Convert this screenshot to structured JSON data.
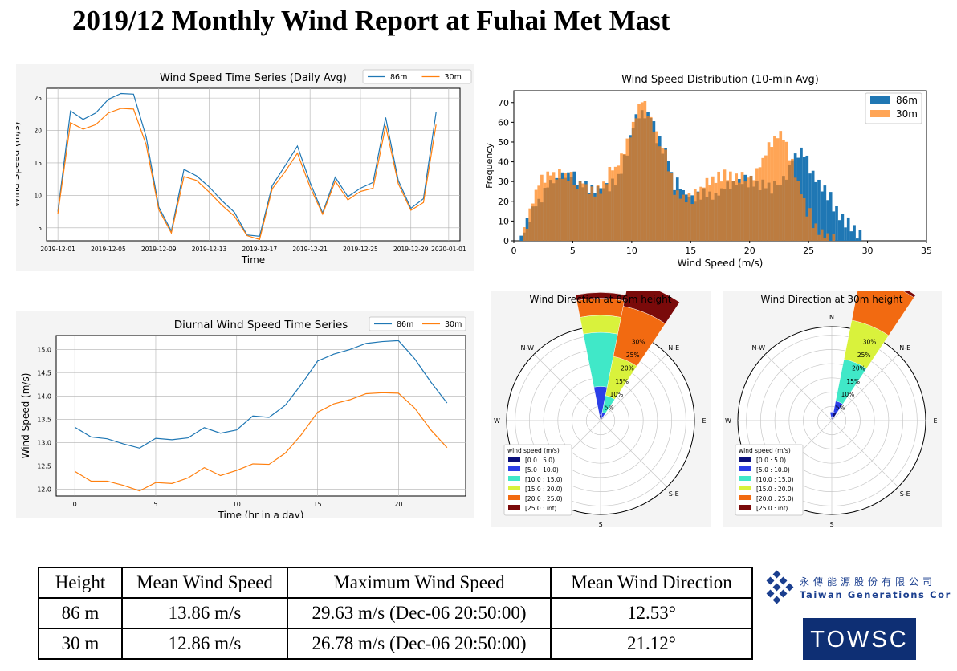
{
  "title": "2019/12 Monthly Wind Report at Fuhai Met Mast",
  "colors": {
    "s86": "#1f77b4",
    "s30": "#ff7f0e",
    "bins": [
      "#0a0f7a",
      "#2b3fe8",
      "#40e8c8",
      "#d9f23c",
      "#f26a11",
      "#7a0a0a"
    ]
  },
  "chart_data": [
    {
      "type": "line",
      "title": "Wind Speed Time Series (Daily Avg)",
      "xlabel": "Time",
      "ylabel": "Wind Speed (m/s)",
      "xticks": [
        "2019-12-01",
        "2019-12-05",
        "2019-12-09",
        "2019-12-13",
        "2019-12-17",
        "2019-12-21",
        "2019-12-25",
        "2019-12-29",
        "2020-01-01"
      ],
      "yticks": [
        "5",
        "10",
        "15",
        "20",
        "25"
      ],
      "ylim": [
        3,
        26.5
      ],
      "xlim": [
        -0.9,
        31.9
      ],
      "x": [
        0,
        1,
        2,
        3,
        4,
        5,
        6,
        7,
        8,
        9,
        10,
        11,
        12,
        13,
        14,
        15,
        16,
        17,
        18,
        19,
        20,
        21,
        22,
        23,
        24,
        25,
        26,
        27,
        28,
        29,
        30
      ],
      "series": [
        {
          "name": "86m",
          "values": [
            7.5,
            23.0,
            21.7,
            22.7,
            24.8,
            25.7,
            25.6,
            19.0,
            8.2,
            4.5,
            14.0,
            13.0,
            11.3,
            9.2,
            7.4,
            3.9,
            3.7,
            11.5,
            14.5,
            17.6,
            12.0,
            7.3,
            12.8,
            9.8,
            11.1,
            12.0,
            22.0,
            12.3,
            8.0,
            9.5,
            22.8
          ]
        },
        {
          "name": "30m",
          "values": [
            7.2,
            21.2,
            20.2,
            20.9,
            22.7,
            23.4,
            23.3,
            17.8,
            7.8,
            4.2,
            12.9,
            12.3,
            10.5,
            8.5,
            6.8,
            3.8,
            3.2,
            11.0,
            13.6,
            16.5,
            11.3,
            7.1,
            12.2,
            9.3,
            10.6,
            11.1,
            20.7,
            11.8,
            7.7,
            8.9,
            20.9
          ]
        }
      ],
      "legend": "top-right"
    },
    {
      "type": "bar",
      "title": "Wind Speed Distribution (10-min Avg)",
      "xlabel": "Wind Speed (m/s)",
      "ylabel": "Frequency",
      "xticks": [
        "0",
        "5",
        "10",
        "15",
        "20",
        "25",
        "30",
        "35"
      ],
      "yticks": [
        "0",
        "10",
        "20",
        "30",
        "40",
        "50",
        "60",
        "70"
      ],
      "xlim": [
        0,
        35
      ],
      "ylim": [
        0,
        76
      ],
      "bin_width": 0.25,
      "series": [
        {
          "name": "86m",
          "x": [
            0.5,
            1,
            2,
            3,
            4,
            5,
            6,
            7,
            8,
            9,
            10,
            10.5,
            11,
            11.5,
            12,
            13,
            13.5,
            14,
            15,
            16,
            17,
            18,
            19,
            20,
            21,
            22,
            23,
            23.5,
            24,
            24.5,
            25,
            26,
            27,
            28,
            29,
            30
          ],
          "values": [
            0,
            6,
            20,
            28,
            33,
            34,
            28,
            27,
            27,
            33,
            55,
            63,
            62,
            65,
            54,
            44,
            29,
            28,
            21,
            23,
            22,
            27,
            30,
            30,
            29,
            27,
            31,
            40,
            45,
            47,
            38,
            28,
            20,
            11,
            4,
            0
          ]
        },
        {
          "name": "30m",
          "x": [
            0.5,
            1,
            2,
            3,
            4,
            5,
            6,
            7,
            8,
            9,
            10,
            10.5,
            11,
            11.5,
            12,
            13,
            13.5,
            14,
            15,
            16,
            17,
            18,
            19,
            20,
            21,
            22,
            23,
            24,
            25,
            26,
            27,
            28
          ],
          "values": [
            0,
            6,
            28,
            34,
            33,
            31,
            29,
            23,
            34,
            39,
            56,
            68,
            72,
            62,
            55,
            41,
            28,
            24,
            21,
            27,
            32,
            34,
            31,
            32,
            39,
            52,
            52,
            31,
            14,
            4,
            1,
            0
          ]
        }
      ],
      "legend": "top-right"
    },
    {
      "type": "line",
      "title": "Diurnal Wind Speed Time Series",
      "xlabel": "Time (hr in a day)",
      "ylabel": "Wind Speed (m/s)",
      "xticks": [
        "0",
        "5",
        "10",
        "15",
        "20"
      ],
      "yticks": [
        "12.0",
        "12.5",
        "13.0",
        "13.5",
        "14.0",
        "14.5",
        "15.0"
      ],
      "xlim": [
        -1.15,
        24.15
      ],
      "ylim": [
        11.85,
        15.3
      ],
      "x": [
        0,
        1,
        2,
        3,
        4,
        5,
        6,
        7,
        8,
        9,
        10,
        11,
        12,
        13,
        14,
        15,
        16,
        17,
        18,
        19,
        20,
        21,
        22,
        23
      ],
      "series": [
        {
          "name": "86m",
          "values": [
            13.33,
            13.12,
            13.08,
            12.97,
            12.88,
            13.09,
            13.06,
            13.1,
            13.32,
            13.2,
            13.27,
            13.57,
            13.54,
            13.8,
            14.25,
            14.75,
            14.9,
            15.0,
            15.13,
            15.17,
            15.19,
            14.8,
            14.3,
            13.85
          ]
        },
        {
          "name": "30m",
          "values": [
            12.38,
            12.17,
            12.17,
            12.08,
            11.96,
            12.14,
            12.12,
            12.24,
            12.46,
            12.29,
            12.4,
            12.54,
            12.53,
            12.77,
            13.17,
            13.65,
            13.83,
            13.92,
            14.05,
            14.07,
            14.06,
            13.74,
            13.27,
            12.89
          ]
        }
      ],
      "legend": "top-right"
    },
    {
      "type": "area",
      "title": "Wind Direction at 86m height",
      "compass": [
        "N",
        "N-E",
        "E",
        "S-E",
        "S",
        "S-W",
        "W",
        "N-W"
      ],
      "rings": [
        "5%",
        "10%",
        "15%",
        "20%",
        "25%",
        "30%"
      ],
      "ring_max": 33,
      "legend_title": "wind speed (m/s)",
      "bin_labels": [
        "[0.0 : 5.0)",
        "[5.0 : 10.0)",
        "[10.0 : 15.0)",
        "[15.0 : 20.0)",
        "[20.0 : 25.0)",
        "[25.0 : inf)"
      ],
      "sectors": [
        {
          "dir": 0,
          "cumulative": [
            2,
            12,
            31,
            37,
            43,
            45
          ]
        },
        {
          "dir": 22.5,
          "cumulative": [
            1,
            3,
            9,
            23,
            41,
            50
          ]
        }
      ]
    },
    {
      "type": "area",
      "title": "Wind Direction at 30m height",
      "compass": [
        "N",
        "N-E",
        "E",
        "S-E",
        "S",
        "S-W",
        "W",
        "N-W"
      ],
      "rings": [
        "5%",
        "10%",
        "15%",
        "20%",
        "25%",
        "30%"
      ],
      "ring_max": 33,
      "legend_title": "wind speed (m/s)",
      "bin_labels": [
        "[0.0 : 5.0)",
        "[5.0 : 10.0)",
        "[10.0 : 15.0)",
        "[15.0 : 20.0)",
        "[20.0 : 25.0)",
        "[25.0 : inf)"
      ],
      "sectors": [
        {
          "dir": 0,
          "cumulative": [
            1,
            3,
            3,
            3,
            3,
            3
          ]
        },
        {
          "dir": 22.5,
          "cumulative": [
            3,
            7,
            22,
            36,
            52,
            53
          ]
        }
      ]
    }
  ],
  "table": {
    "headers": [
      "Height",
      "Mean Wind Speed",
      "Maximum Wind Speed",
      "Mean Wind Direction"
    ],
    "rows": [
      [
        "86 m",
        "13.86 m/s",
        "29.63 m/s (Dec-06 20:50:00)",
        "12.53°"
      ],
      [
        "30 m",
        "12.86 m/s",
        "26.78 m/s (Dec-06 20:50:00)",
        "21.12°"
      ]
    ]
  },
  "logos": {
    "company_cn": "永傳能源股份有限公司",
    "company_en": "Taiwan Generations Corp.",
    "towsc": "TOWSC"
  }
}
